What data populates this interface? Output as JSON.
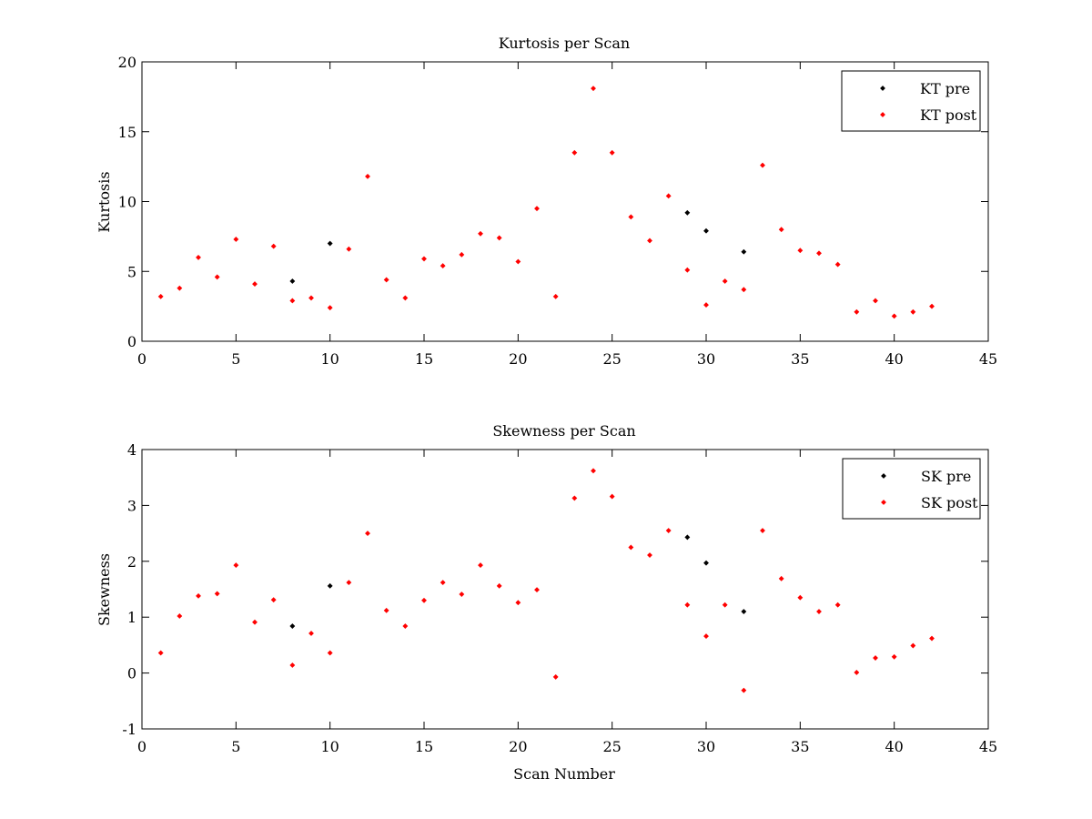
{
  "colors": {
    "pre": "#000000",
    "post": "#ff0000",
    "axes": "#000000",
    "background": "#ffffff"
  },
  "chart_data": [
    {
      "type": "scatter",
      "title": "Kurtosis per Scan",
      "xlabel": "",
      "ylabel": "Kurtosis",
      "xlim": [
        0,
        45
      ],
      "ylim": [
        0,
        20
      ],
      "xticks": [
        0,
        5,
        10,
        15,
        20,
        25,
        30,
        35,
        40,
        45
      ],
      "yticks": [
        0,
        5,
        10,
        15,
        20
      ],
      "grid": false,
      "legend_position": "top-right",
      "series": [
        {
          "name": "KT pre",
          "color": "#000000",
          "points": [
            [
              8,
              4.3
            ],
            [
              10,
              7.0
            ],
            [
              29,
              9.2
            ],
            [
              30,
              7.9
            ],
            [
              32,
              6.4
            ]
          ]
        },
        {
          "name": "KT post",
          "color": "#ff0000",
          "points": [
            [
              1,
              3.2
            ],
            [
              2,
              3.8
            ],
            [
              3,
              6.0
            ],
            [
              4,
              4.6
            ],
            [
              5,
              7.3
            ],
            [
              6,
              4.1
            ],
            [
              7,
              6.8
            ],
            [
              8,
              2.9
            ],
            [
              9,
              3.1
            ],
            [
              10,
              2.4
            ],
            [
              11,
              6.6
            ],
            [
              12,
              11.8
            ],
            [
              13,
              4.4
            ],
            [
              14,
              3.1
            ],
            [
              15,
              5.9
            ],
            [
              16,
              5.4
            ],
            [
              17,
              6.2
            ],
            [
              18,
              7.7
            ],
            [
              19,
              7.4
            ],
            [
              20,
              5.7
            ],
            [
              21,
              9.5
            ],
            [
              22,
              3.2
            ],
            [
              23,
              13.5
            ],
            [
              24,
              18.1
            ],
            [
              25,
              13.5
            ],
            [
              26,
              8.9
            ],
            [
              27,
              7.2
            ],
            [
              28,
              10.4
            ],
            [
              29,
              5.1
            ],
            [
              30,
              2.6
            ],
            [
              31,
              4.3
            ],
            [
              32,
              3.7
            ],
            [
              33,
              12.6
            ],
            [
              34,
              8.0
            ],
            [
              35,
              6.5
            ],
            [
              36,
              6.3
            ],
            [
              37,
              5.5
            ],
            [
              38,
              2.1
            ],
            [
              39,
              2.9
            ],
            [
              40,
              1.8
            ],
            [
              41,
              2.1
            ],
            [
              42,
              2.5
            ]
          ]
        }
      ]
    },
    {
      "type": "scatter",
      "title": "Skewness per Scan",
      "xlabel": "Scan Number",
      "ylabel": "Skewness",
      "xlim": [
        0,
        45
      ],
      "ylim": [
        -1,
        4
      ],
      "xticks": [
        0,
        5,
        10,
        15,
        20,
        25,
        30,
        35,
        40,
        45
      ],
      "yticks": [
        -1,
        0,
        1,
        2,
        3,
        4
      ],
      "grid": false,
      "legend_position": "top-right",
      "series": [
        {
          "name": "SK pre",
          "color": "#000000",
          "points": [
            [
              8,
              0.84
            ],
            [
              10,
              1.56
            ],
            [
              29,
              2.43
            ],
            [
              30,
              1.97
            ],
            [
              32,
              1.1
            ]
          ]
        },
        {
          "name": "SK post",
          "color": "#ff0000",
          "points": [
            [
              1,
              0.36
            ],
            [
              2,
              1.02
            ],
            [
              3,
              1.38
            ],
            [
              4,
              1.42
            ],
            [
              5,
              1.93
            ],
            [
              6,
              0.91
            ],
            [
              7,
              1.31
            ],
            [
              8,
              0.14
            ],
            [
              9,
              0.71
            ],
            [
              10,
              0.36
            ],
            [
              11,
              1.62
            ],
            [
              12,
              2.5
            ],
            [
              13,
              1.12
            ],
            [
              14,
              0.84
            ],
            [
              15,
              1.3
            ],
            [
              16,
              1.62
            ],
            [
              17,
              1.41
            ],
            [
              18,
              1.93
            ],
            [
              19,
              1.56
            ],
            [
              20,
              1.26
            ],
            [
              21,
              1.49
            ],
            [
              22,
              -0.07
            ],
            [
              23,
              3.13
            ],
            [
              24,
              3.62
            ],
            [
              25,
              3.16
            ],
            [
              26,
              2.25
            ],
            [
              27,
              2.11
            ],
            [
              28,
              2.55
            ],
            [
              29,
              1.22
            ],
            [
              30,
              0.66
            ],
            [
              31,
              1.22
            ],
            [
              32,
              -0.31
            ],
            [
              33,
              2.55
            ],
            [
              34,
              1.69
            ],
            [
              35,
              1.35
            ],
            [
              36,
              1.1
            ],
            [
              37,
              1.22
            ],
            [
              38,
              0.01
            ],
            [
              39,
              0.27
            ],
            [
              40,
              0.29
            ],
            [
              41,
              0.49
            ],
            [
              42,
              0.62
            ]
          ]
        }
      ]
    }
  ]
}
